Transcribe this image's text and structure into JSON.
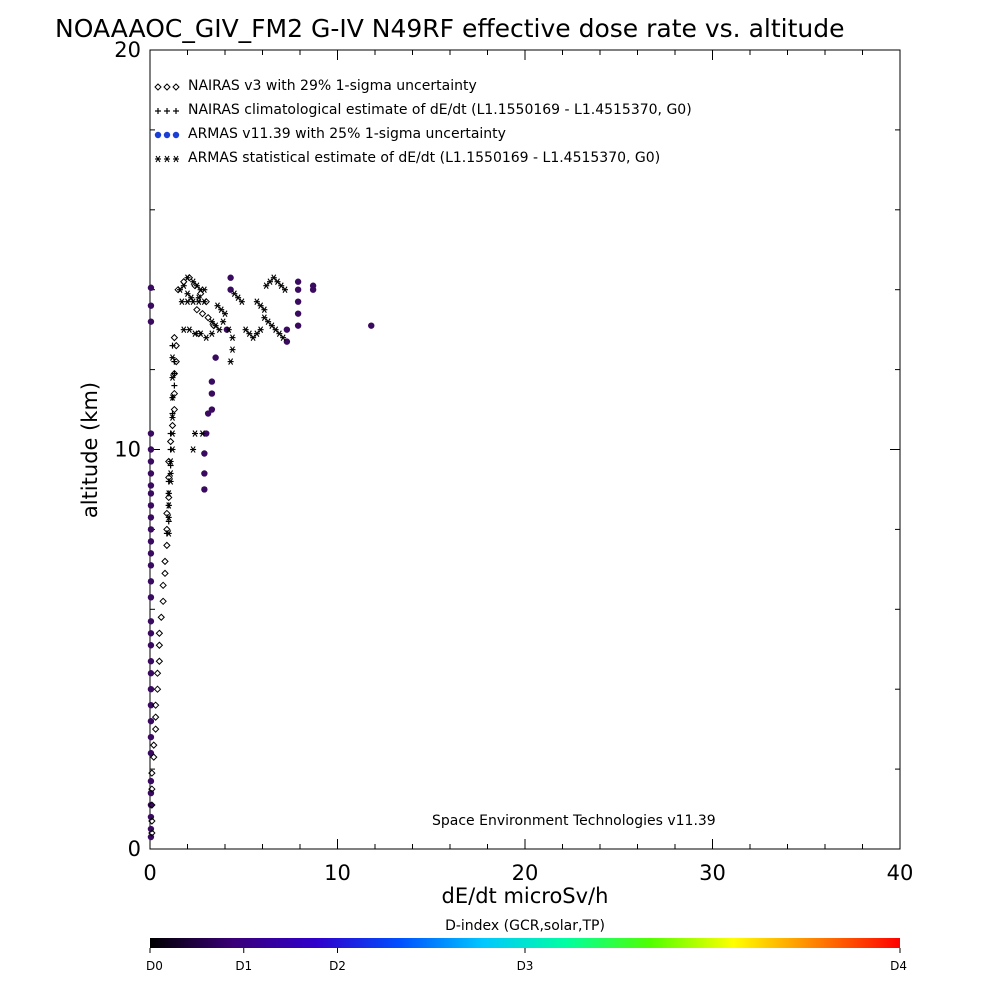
{
  "chart_data": {
    "type": "scatter",
    "title": "NOAAAOC_GIV_FM2 G-IV   N49RF  effective dose rate vs. altitude",
    "xlabel": "dE/dt microSv/h",
    "ylabel": "altitude (km)",
    "xlim": [
      0,
      40
    ],
    "ylim": [
      0,
      20
    ],
    "x_ticks": [
      "0",
      "10",
      "20",
      "30",
      "40"
    ],
    "y_ticks": [
      "0",
      "10",
      "20"
    ],
    "grid": false,
    "legend_position": "top-left",
    "credit": "Space Environment Technologies v11.39",
    "legend": [
      {
        "symbol": "◇◇◇",
        "label": "NAIRAS v3 with 29% 1-sigma uncertainty",
        "color": "#000000"
      },
      {
        "symbol": "+++",
        "label": "NAIRAS climatological estimate of dE/dt (L1.1550169 - L1.4515370, G0)",
        "color": "#000000"
      },
      {
        "symbol": "●●●",
        "label": "ARMAS v11.39 with 25% 1-sigma uncertainty",
        "color": "#1a3fd6"
      },
      {
        "symbol": "✱✱✱",
        "label": "ARMAS statistical estimate of dE/dt (L1.1550169 - L1.4515370, G0)",
        "color": "#000000"
      }
    ],
    "colorbar": {
      "title": "D-index (GCR,solar,TP)",
      "labels": [
        {
          "text": "D0",
          "frac": 0.0
        },
        {
          "text": "D1",
          "frac": 0.125
        },
        {
          "text": "D2",
          "frac": 0.25
        },
        {
          "text": "D3",
          "frac": 0.5
        },
        {
          "text": "D4",
          "frac": 1.0
        }
      ],
      "stops": [
        "#000000",
        "#3a0078",
        "#3000cc",
        "#0050ff",
        "#00c8ff",
        "#00ffa0",
        "#50ff00",
        "#ffff00",
        "#ff8000",
        "#ff0000"
      ]
    },
    "series": [
      {
        "name": "ARMAS v11.39 with 25% 1-sigma uncertainty",
        "marker": "dot",
        "color": "#3a0a60",
        "points": [
          [
            0.05,
            14.05
          ],
          [
            0.05,
            13.6
          ],
          [
            0.05,
            13.2
          ],
          [
            0.05,
            10.4
          ],
          [
            0.05,
            10.0
          ],
          [
            0.05,
            9.7
          ],
          [
            0.05,
            9.4
          ],
          [
            0.05,
            9.1
          ],
          [
            0.05,
            8.9
          ],
          [
            0.05,
            8.6
          ],
          [
            0.05,
            8.3
          ],
          [
            0.05,
            8.0
          ],
          [
            0.05,
            7.7
          ],
          [
            0.05,
            7.4
          ],
          [
            0.05,
            7.1
          ],
          [
            0.05,
            6.7
          ],
          [
            0.05,
            6.3
          ],
          [
            0.05,
            5.7
          ],
          [
            0.05,
            5.4
          ],
          [
            0.05,
            5.1
          ],
          [
            0.05,
            4.7
          ],
          [
            0.05,
            4.4
          ],
          [
            0.05,
            4.0
          ],
          [
            0.05,
            3.6
          ],
          [
            0.05,
            3.2
          ],
          [
            0.05,
            2.8
          ],
          [
            0.05,
            2.4
          ],
          [
            0.05,
            1.7
          ],
          [
            0.05,
            1.4
          ],
          [
            0.05,
            1.1
          ],
          [
            0.05,
            0.8
          ],
          [
            0.05,
            0.5
          ],
          [
            0.05,
            0.3
          ],
          [
            2.9,
            9.0
          ],
          [
            2.9,
            9.4
          ],
          [
            2.9,
            9.9
          ],
          [
            3.0,
            10.4
          ],
          [
            3.1,
            10.9
          ],
          [
            3.3,
            11.0
          ],
          [
            3.3,
            11.4
          ],
          [
            3.3,
            11.7
          ],
          [
            3.5,
            12.3
          ],
          [
            4.1,
            13.0
          ],
          [
            4.3,
            14.0
          ],
          [
            4.3,
            14.3
          ],
          [
            7.3,
            12.7
          ],
          [
            7.3,
            13.0
          ],
          [
            7.9,
            13.1
          ],
          [
            7.9,
            13.4
          ],
          [
            7.9,
            13.7
          ],
          [
            7.9,
            14.0
          ],
          [
            7.9,
            14.2
          ],
          [
            8.7,
            14.0
          ],
          [
            8.7,
            14.1
          ],
          [
            11.8,
            13.1
          ]
        ]
      },
      {
        "name": "ARMAS statistical estimate of dE/dt (L1.1550169 - L1.4515370, G0)",
        "marker": "asterisk",
        "color": "#000000",
        "points": [
          [
            1.2,
            12.3
          ],
          [
            1.2,
            11.8
          ],
          [
            1.2,
            11.3
          ],
          [
            1.2,
            10.8
          ],
          [
            1.2,
            10.4
          ],
          [
            1.2,
            10.0
          ],
          [
            1.1,
            9.7
          ],
          [
            1.1,
            9.4
          ],
          [
            1.1,
            9.2
          ],
          [
            1.0,
            8.9
          ],
          [
            1.0,
            8.6
          ],
          [
            1.0,
            8.3
          ],
          [
            1.0,
            7.9
          ],
          [
            2.3,
            10.0
          ],
          [
            2.4,
            10.4
          ],
          [
            2.8,
            10.4
          ],
          [
            1.6,
            14.0
          ],
          [
            1.8,
            14.1
          ],
          [
            2.0,
            14.3
          ],
          [
            2.3,
            14.2
          ],
          [
            2.5,
            14.1
          ],
          [
            2.7,
            14.0
          ],
          [
            2.9,
            14.0
          ],
          [
            1.7,
            13.7
          ],
          [
            2.0,
            13.7
          ],
          [
            2.3,
            13.7
          ],
          [
            2.6,
            13.7
          ],
          [
            2.9,
            13.7
          ],
          [
            1.8,
            13.0
          ],
          [
            2.1,
            13.0
          ],
          [
            2.4,
            12.9
          ],
          [
            2.7,
            12.9
          ],
          [
            3.0,
            12.8
          ],
          [
            3.3,
            12.9
          ],
          [
            3.3,
            13.2
          ],
          [
            3.5,
            13.1
          ],
          [
            3.7,
            13.0
          ],
          [
            3.9,
            13.2
          ],
          [
            4.2,
            13.0
          ],
          [
            4.4,
            12.8
          ],
          [
            4.4,
            12.5
          ],
          [
            4.3,
            12.2
          ],
          [
            3.6,
            13.6
          ],
          [
            3.8,
            13.5
          ],
          [
            4.0,
            13.4
          ],
          [
            4.5,
            13.9
          ],
          [
            4.7,
            13.8
          ],
          [
            4.9,
            13.7
          ],
          [
            5.1,
            13.0
          ],
          [
            5.3,
            12.9
          ],
          [
            5.5,
            12.8
          ],
          [
            5.7,
            12.9
          ],
          [
            5.9,
            13.0
          ],
          [
            5.7,
            13.7
          ],
          [
            5.9,
            13.6
          ],
          [
            6.1,
            13.5
          ],
          [
            6.1,
            13.3
          ],
          [
            6.3,
            13.2
          ],
          [
            6.5,
            13.1
          ],
          [
            6.7,
            13.0
          ],
          [
            6.9,
            12.9
          ],
          [
            7.1,
            12.8
          ],
          [
            6.2,
            14.1
          ],
          [
            6.4,
            14.2
          ],
          [
            6.6,
            14.3
          ],
          [
            6.8,
            14.2
          ],
          [
            7.0,
            14.1
          ],
          [
            7.2,
            14.0
          ],
          [
            2.0,
            13.9
          ],
          [
            2.2,
            13.8
          ],
          [
            2.6,
            13.8
          ]
        ]
      },
      {
        "name": "NAIRAS climatological estimate of dE/dt (L1.1550169 - L1.4515370, G0)",
        "marker": "plus",
        "color": "#000000",
        "points": [
          [
            1.2,
            12.6
          ],
          [
            1.3,
            12.2
          ],
          [
            1.3,
            11.9
          ],
          [
            1.3,
            11.6
          ],
          [
            1.2,
            11.3
          ],
          [
            1.2,
            10.9
          ],
          [
            1.1,
            10.4
          ],
          [
            1.1,
            10.0
          ],
          [
            1.1,
            9.6
          ],
          [
            1.0,
            9.2
          ],
          [
            1.0,
            8.9
          ],
          [
            1.0,
            8.6
          ],
          [
            1.0,
            8.2
          ],
          [
            0.9,
            7.9
          ]
        ]
      },
      {
        "name": "NAIRAS v3 with 29% 1-sigma uncertainty",
        "marker": "diamond",
        "color": "#000000",
        "points": [
          [
            1.3,
            12.8
          ],
          [
            1.4,
            12.6
          ],
          [
            1.4,
            12.2
          ],
          [
            1.3,
            11.9
          ],
          [
            1.3,
            11.4
          ],
          [
            1.3,
            11.0
          ],
          [
            1.2,
            10.6
          ],
          [
            1.1,
            10.2
          ],
          [
            1.0,
            9.7
          ],
          [
            1.0,
            9.3
          ],
          [
            1.0,
            8.8
          ],
          [
            0.9,
            8.4
          ],
          [
            0.9,
            8.0
          ],
          [
            0.9,
            7.6
          ],
          [
            0.8,
            7.2
          ],
          [
            0.8,
            6.9
          ],
          [
            0.7,
            6.6
          ],
          [
            0.7,
            6.2
          ],
          [
            0.6,
            5.8
          ],
          [
            0.5,
            5.4
          ],
          [
            0.5,
            5.1
          ],
          [
            0.5,
            4.7
          ],
          [
            0.4,
            4.4
          ],
          [
            0.4,
            4.0
          ],
          [
            0.3,
            3.6
          ],
          [
            0.3,
            3.3
          ],
          [
            0.3,
            3.0
          ],
          [
            0.2,
            2.6
          ],
          [
            0.2,
            2.3
          ],
          [
            0.1,
            1.9
          ],
          [
            0.1,
            1.5
          ],
          [
            0.1,
            1.1
          ],
          [
            0.1,
            0.7
          ],
          [
            0.1,
            0.4
          ],
          [
            1.5,
            14.0
          ],
          [
            1.8,
            14.2
          ],
          [
            2.1,
            14.3
          ],
          [
            2.4,
            14.1
          ],
          [
            2.7,
            13.9
          ],
          [
            3.0,
            13.7
          ],
          [
            2.5,
            13.5
          ],
          [
            2.8,
            13.4
          ],
          [
            3.1,
            13.3
          ],
          [
            3.4,
            13.1
          ],
          [
            2.6,
            12.9
          ]
        ]
      }
    ]
  }
}
